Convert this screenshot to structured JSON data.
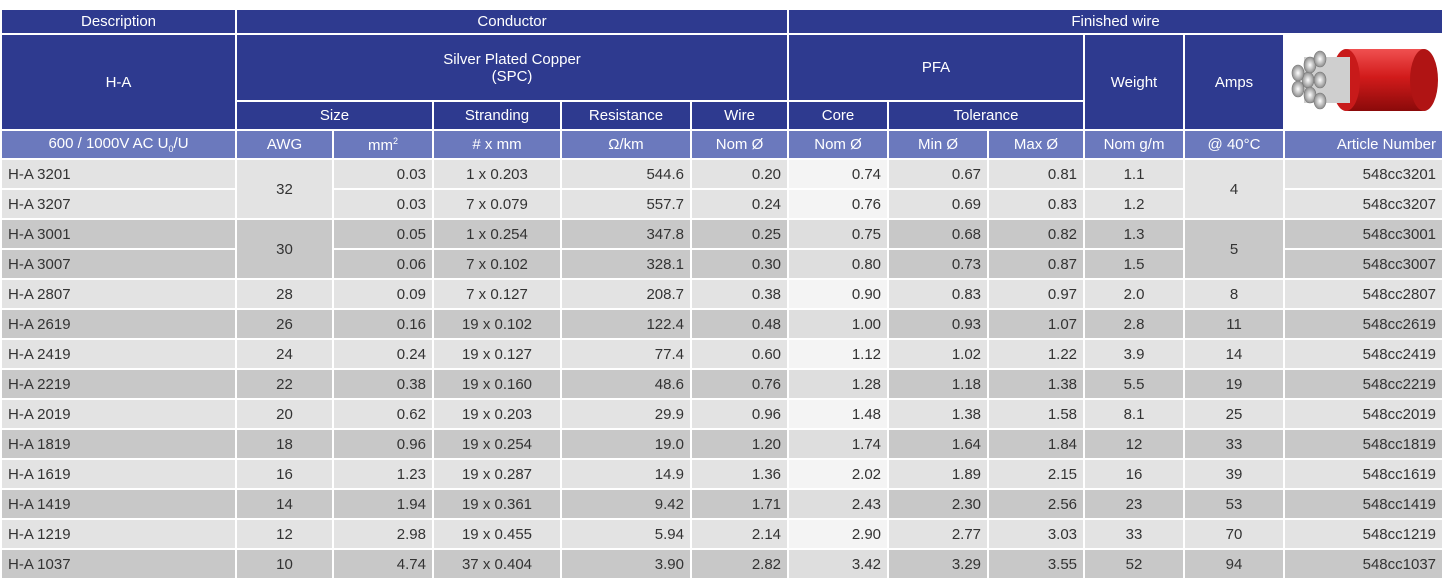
{
  "header": {
    "description": "Description",
    "conductor": "Conductor",
    "finished_wire": "Finished wire",
    "type": "H-A",
    "material": "Silver Plated Copper",
    "material_abbr": "(SPC)",
    "pfa": "PFA",
    "weight": "Weight",
    "amps": "Amps",
    "size": "Size",
    "stranding": "Stranding",
    "resistance": "Resistance",
    "wire": "Wire",
    "core": "Core",
    "tolerance": "Tolerance",
    "voltage": {
      "text": "600 / 1000V AC U",
      "sub": "0",
      "tail": "/U"
    },
    "awg": "AWG",
    "mm": {
      "text": "mm",
      "sup": "2"
    },
    "strand_unit": "# x mm",
    "res_unit": "Ω/km",
    "wire_unit": "Nom  Ø",
    "core_unit": "Nom  Ø",
    "min_unit": "Min  Ø",
    "max_unit": "Max  Ø",
    "weight_unit": "Nom  g/m",
    "amps_unit": "@ 40°C",
    "article": "Article Number"
  },
  "table": {
    "rows": [
      {
        "id": "H-A 3201",
        "awg": "32",
        "mm2": "0.03",
        "stranding": "1 x 0.203",
        "resistance": "544.6",
        "wire": "0.20",
        "core": "0.74",
        "min": "0.67",
        "max": "0.81",
        "weight": "1.1",
        "amps": "4",
        "article": "548cc3201"
      },
      {
        "id": "H-A 3207",
        "mm2": "0.03",
        "stranding": "7 x 0.079",
        "resistance": "557.7",
        "wire": "0.24",
        "core": "0.76",
        "min": "0.69",
        "max": "0.83",
        "weight": "1.2",
        "article": "548cc3207"
      },
      {
        "id": "H-A 3001",
        "awg": "30",
        "mm2": "0.05",
        "stranding": "1 x 0.254",
        "resistance": "347.8",
        "wire": "0.25",
        "core": "0.75",
        "min": "0.68",
        "max": "0.82",
        "weight": "1.3",
        "amps": "5",
        "article": "548cc3001"
      },
      {
        "id": "H-A 3007",
        "mm2": "0.06",
        "stranding": "7 x 0.102",
        "resistance": "328.1",
        "wire": "0.30",
        "core": "0.80",
        "min": "0.73",
        "max": "0.87",
        "weight": "1.5",
        "article": "548cc3007"
      },
      {
        "id": "H-A 2807",
        "awg": "28",
        "mm2": "0.09",
        "stranding": "7 x 0.127",
        "resistance": "208.7",
        "wire": "0.38",
        "core": "0.90",
        "min": "0.83",
        "max": "0.97",
        "weight": "2.0",
        "amps": "8",
        "article": "548cc2807"
      },
      {
        "id": "H-A 2619",
        "awg": "26",
        "mm2": "0.16",
        "stranding": "19 x 0.102",
        "resistance": "122.4",
        "wire": "0.48",
        "core": "1.00",
        "min": "0.93",
        "max": "1.07",
        "weight": "2.8",
        "amps": "11",
        "article": "548cc2619"
      },
      {
        "id": "H-A 2419",
        "awg": "24",
        "mm2": "0.24",
        "stranding": "19 x 0.127",
        "resistance": "77.4",
        "wire": "0.60",
        "core": "1.12",
        "min": "1.02",
        "max": "1.22",
        "weight": "3.9",
        "amps": "14",
        "article": "548cc2419"
      },
      {
        "id": "H-A 2219",
        "awg": "22",
        "mm2": "0.38",
        "stranding": "19 x 0.160",
        "resistance": "48.6",
        "wire": "0.76",
        "core": "1.28",
        "min": "1.18",
        "max": "1.38",
        "weight": "5.5",
        "amps": "19",
        "article": "548cc2219"
      },
      {
        "id": "H-A 2019",
        "awg": "20",
        "mm2": "0.62",
        "stranding": "19 x 0.203",
        "resistance": "29.9",
        "wire": "0.96",
        "core": "1.48",
        "min": "1.38",
        "max": "1.58",
        "weight": "8.1",
        "amps": "25",
        "article": "548cc2019"
      },
      {
        "id": "H-A 1819",
        "awg": "18",
        "mm2": "0.96",
        "stranding": "19 x 0.254",
        "resistance": "19.0",
        "wire": "1.20",
        "core": "1.74",
        "min": "1.64",
        "max": "1.84",
        "weight": "12",
        "amps": "33",
        "article": "548cc1819"
      },
      {
        "id": "H-A 1619",
        "awg": "16",
        "mm2": "1.23",
        "stranding": "19 x 0.287",
        "resistance": "14.9",
        "wire": "1.36",
        "core": "2.02",
        "min": "1.89",
        "max": "2.15",
        "weight": "16",
        "amps": "39",
        "article": "548cc1619"
      },
      {
        "id": "H-A 1419",
        "awg": "14",
        "mm2": "1.94",
        "stranding": "19 x 0.361",
        "resistance": "9.42",
        "wire": "1.71",
        "core": "2.43",
        "min": "2.30",
        "max": "2.56",
        "weight": "23",
        "amps": "53",
        "article": "548cc1419"
      },
      {
        "id": "H-A 1219",
        "awg": "12",
        "mm2": "2.98",
        "stranding": "19 x 0.455",
        "resistance": "5.94",
        "wire": "2.14",
        "core": "2.90",
        "min": "2.77",
        "max": "3.03",
        "weight": "33",
        "amps": "70",
        "article": "548cc1219"
      },
      {
        "id": "H-A 1037",
        "awg": "10",
        "mm2": "4.74",
        "stranding": "37 x 0.404",
        "resistance": "3.90",
        "wire": "2.82",
        "core": "3.42",
        "min": "3.29",
        "max": "3.55",
        "weight": "52",
        "amps": "94",
        "article": "548cc1037"
      }
    ]
  }
}
